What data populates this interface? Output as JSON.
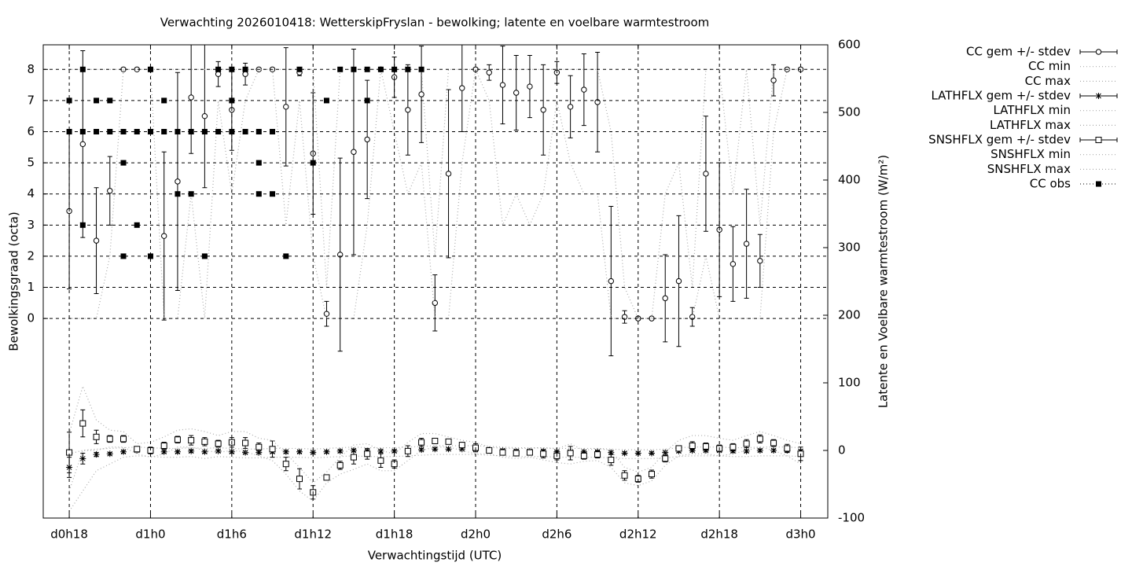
{
  "chart_data": {
    "type": "errorbar",
    "title": "Verwachting 2026010418: WetterskipFryslan - bewolking; latente en voelbare warmtestroom",
    "xlabel": "Verwachtingstijd (UTC)",
    "ylabel": "Bewolkingsgraad (octa)",
    "y2label": "Latente en Voelbare warmtestroom (W/m²)",
    "grid": true,
    "legend": "outside-right",
    "x": [
      0,
      1,
      2,
      3,
      4,
      5,
      6,
      7,
      8,
      9,
      10,
      11,
      12,
      13,
      14,
      15,
      16,
      17,
      18,
      19,
      20,
      21,
      22,
      23,
      24,
      25,
      26,
      27,
      28,
      29,
      30,
      31,
      32,
      33,
      34,
      35,
      36,
      37,
      38,
      39,
      40,
      41,
      42,
      43,
      44,
      45,
      46,
      47,
      48,
      49,
      50,
      51,
      52,
      53,
      54
    ],
    "xlim": [
      -1.92,
      56.0
    ],
    "xticks": [
      {
        "value": 0,
        "label": "d0h18"
      },
      {
        "value": 6,
        "label": "d1h0"
      },
      {
        "value": 12,
        "label": "d1h6"
      },
      {
        "value": 18,
        "label": "d1h12"
      },
      {
        "value": 24,
        "label": "d1h18"
      },
      {
        "value": 30,
        "label": "d2h0"
      },
      {
        "value": 36,
        "label": "d2h6"
      },
      {
        "value": 42,
        "label": "d2h12"
      },
      {
        "value": 48,
        "label": "d2h18"
      },
      {
        "value": 54,
        "label": "d3h0"
      }
    ],
    "ylim": [
      -6.41,
      8.79
    ],
    "yticks": [
      0,
      1,
      2,
      3,
      4,
      5,
      6,
      7,
      8
    ],
    "y2lim": [
      -100,
      600
    ],
    "y2ticks": [
      -100,
      0,
      100,
      200,
      300,
      400,
      500,
      600
    ],
    "series": [
      {
        "name": "CC gem +/- stdev",
        "color": "#000000",
        "style": "errorbar-circle",
        "values": [
          3.45,
          5.6,
          2.5,
          4.1,
          8,
          8,
          8,
          2.65,
          4.4,
          7.1,
          6.5,
          7.85,
          6.7,
          7.85,
          8,
          8,
          6.8,
          7.9,
          5.3,
          0.15,
          2.05,
          5.35,
          5.75,
          8,
          7.75,
          6.7,
          7.2,
          0.5,
          4.65,
          7.4,
          8,
          7.9,
          7.5,
          7.25,
          7.45,
          6.7,
          7.9,
          6.8,
          7.35,
          6.95,
          1.2,
          0.05,
          0,
          0,
          0.65,
          1.2,
          0.05,
          4.65,
          2.85,
          1.75,
          2.4,
          1.85,
          7.65,
          8,
          8
        ],
        "errors": [
          2.5,
          3.0,
          1.7,
          1.1,
          0,
          0,
          0.05,
          2.7,
          3.5,
          1.8,
          2.3,
          0.4,
          1.3,
          0.35,
          0,
          0,
          1.9,
          0.1,
          1.95,
          0.4,
          3.1,
          3.3,
          1.9,
          0,
          0.65,
          1.45,
          1.55,
          0.9,
          2.7,
          1.4,
          0,
          0.25,
          1.25,
          1.2,
          1.0,
          1.45,
          0.35,
          1.0,
          1.15,
          1.6,
          2.4,
          0.2,
          0.05,
          0,
          1.4,
          2.1,
          0.3,
          1.85,
          2.15,
          1.2,
          1.75,
          0.85,
          0.5,
          0,
          0
        ]
      },
      {
        "name": "CC min",
        "color": "#aaaaaa",
        "style": "dotted",
        "values": [
          0,
          0,
          0,
          2,
          8,
          8,
          8,
          0,
          0,
          4,
          0,
          7,
          4,
          7,
          8,
          8,
          3,
          7,
          2,
          0,
          0,
          0,
          3,
          8,
          6,
          4,
          5,
          0,
          0,
          5,
          8,
          7,
          3,
          4,
          3,
          4,
          7,
          5,
          4,
          4,
          0,
          0,
          0,
          0,
          0,
          0,
          0,
          2,
          0,
          0,
          0,
          0,
          6,
          8,
          8
        ]
      },
      {
        "name": "CC max",
        "color": "#aaaaaa",
        "style": "dotted",
        "values": [
          8,
          8,
          8,
          8,
          8,
          8,
          8,
          8,
          8,
          8,
          8,
          8,
          8,
          8,
          8,
          8,
          8,
          8,
          8,
          1,
          8,
          8,
          8,
          8,
          8,
          8,
          8,
          2,
          8,
          8,
          8,
          8,
          8,
          8,
          8,
          8,
          8,
          8,
          8,
          8,
          6,
          1,
          0,
          0,
          4,
          5,
          1,
          8,
          8,
          4,
          8,
          3,
          8,
          8,
          8
        ]
      },
      {
        "name": "LATHFLX gem +/- stdev",
        "color": "#000000",
        "style": "errorbar-star",
        "axis": "y2",
        "values": [
          -25,
          -12,
          -6,
          -5,
          -2,
          0,
          -1,
          -2,
          -2,
          -1,
          -2,
          -1,
          -2,
          -3,
          -3,
          -2,
          -2,
          -2,
          -3,
          -2,
          -1,
          0,
          -1,
          -1,
          -1,
          0,
          1,
          2,
          2,
          2,
          2,
          1,
          0,
          -1,
          -1,
          -1,
          -2,
          -2,
          -2,
          -2,
          -3,
          -4,
          -4,
          -4,
          -3,
          -1,
          0,
          0,
          0,
          -1,
          -1,
          0,
          0,
          0,
          -1
        ],
        "errors": [
          15,
          8,
          3,
          2,
          2,
          2,
          2,
          2,
          2,
          2,
          2,
          2,
          2,
          2,
          2,
          2,
          2,
          2,
          2,
          2,
          2,
          2,
          2,
          2,
          2,
          2,
          2,
          2,
          2,
          2,
          2,
          2,
          2,
          2,
          2,
          2,
          2,
          2,
          2,
          2,
          2,
          2,
          2,
          2,
          2,
          2,
          2,
          2,
          2,
          2,
          2,
          2,
          2,
          2,
          2
        ]
      },
      {
        "name": "LATHFLX min",
        "color": "#aaaaaa",
        "style": "dotted",
        "axis": "y2",
        "values": [
          -90,
          -60,
          -30,
          -20,
          -10,
          -8,
          -9,
          -10,
          -10,
          -9,
          -12,
          -9,
          -10,
          -11,
          -11,
          -10,
          -10,
          -10,
          -11,
          -10,
          -9,
          -8,
          -9,
          -9,
          -9,
          -8,
          -7,
          -6,
          -6,
          -6,
          -6,
          -7,
          -8,
          -9,
          -9,
          -9,
          -10,
          -10,
          -10,
          -10,
          -11,
          -12,
          -12,
          -12,
          -11,
          -9,
          -8,
          -8,
          -8,
          -9,
          -9,
          -8,
          -8,
          -8,
          -9
        ]
      },
      {
        "name": "LATHFLX max",
        "color": "#aaaaaa",
        "style": "dotted",
        "axis": "y2",
        "values": [
          -5,
          0,
          2,
          3,
          4,
          5,
          4,
          3,
          3,
          4,
          3,
          4,
          3,
          2,
          2,
          3,
          3,
          3,
          2,
          3,
          4,
          5,
          4,
          4,
          4,
          5,
          6,
          7,
          7,
          7,
          7,
          6,
          5,
          4,
          4,
          4,
          3,
          3,
          3,
          3,
          2,
          1,
          1,
          1,
          2,
          4,
          5,
          5,
          5,
          4,
          4,
          5,
          5,
          5,
          4
        ]
      },
      {
        "name": "SNSHFLX gem +/- stdev",
        "color": "#000000",
        "style": "errorbar-square",
        "axis": "y2",
        "values": [
          -3,
          40,
          20,
          17,
          17,
          2,
          0,
          7,
          16,
          15,
          13,
          10,
          12,
          11,
          5,
          2,
          -20,
          -42,
          -62,
          -40,
          -22,
          -10,
          -5,
          -15,
          -20,
          -1,
          12,
          14,
          13,
          8,
          4,
          0,
          -3,
          -4,
          -3,
          -5,
          -8,
          -4,
          -8,
          -6,
          -14,
          -37,
          -42,
          -35,
          -12,
          3,
          7,
          6,
          3,
          5,
          10,
          17,
          11,
          3,
          -5
        ],
        "errors": [
          30,
          20,
          10,
          5,
          5,
          3,
          5,
          5,
          5,
          7,
          6,
          5,
          7,
          8,
          6,
          12,
          10,
          15,
          10,
          3,
          6,
          10,
          8,
          10,
          6,
          8,
          6,
          4,
          3,
          4,
          6,
          2,
          3,
          4,
          3,
          6,
          6,
          10,
          5,
          5,
          8,
          7,
          5,
          6,
          5,
          4,
          6,
          5,
          5,
          5,
          6,
          6,
          5,
          6,
          10
        ]
      },
      {
        "name": "SNSHFLX min",
        "color": "#aaaaaa",
        "style": "dotted",
        "axis": "y2",
        "values": [
          -60,
          0,
          0,
          5,
          5,
          -5,
          -10,
          -5,
          5,
          5,
          0,
          -3,
          0,
          -2,
          -8,
          -15,
          -35,
          -60,
          -75,
          -48,
          -35,
          -28,
          -20,
          -30,
          -30,
          -15,
          0,
          5,
          5,
          0,
          -5,
          -5,
          -10,
          -12,
          -10,
          -14,
          -18,
          -20,
          -16,
          -15,
          -25,
          -48,
          -52,
          -45,
          -22,
          -8,
          -5,
          -5,
          -8,
          -5,
          0,
          5,
          0,
          -8,
          -20
        ]
      },
      {
        "name": "SNSHFLX max",
        "color": "#aaaaaa",
        "style": "dotted",
        "axis": "y2",
        "values": [
          25,
          95,
          45,
          30,
          28,
          10,
          12,
          20,
          30,
          32,
          28,
          22,
          28,
          28,
          18,
          15,
          -5,
          -25,
          -48,
          -32,
          -10,
          8,
          10,
          0,
          -5,
          12,
          25,
          25,
          20,
          15,
          12,
          5,
          3,
          3,
          3,
          4,
          2,
          10,
          0,
          3,
          0,
          -25,
          -32,
          -25,
          -2,
          15,
          22,
          22,
          18,
          15,
          22,
          28,
          22,
          15,
          10
        ]
      },
      {
        "name": "CC obs",
        "color": "#000000",
        "style": "points-square",
        "x": [
          0,
          0,
          1,
          1,
          1,
          2,
          2,
          3,
          3,
          4,
          4,
          4,
          5,
          5,
          6,
          6,
          6,
          7,
          7,
          8,
          8,
          9,
          9,
          10,
          10,
          11,
          11,
          12,
          12,
          12,
          13,
          13,
          14,
          14,
          14,
          15,
          15,
          16,
          17,
          18,
          19,
          20,
          21,
          22,
          22,
          23,
          24,
          25,
          26
        ],
        "values": [
          7,
          6,
          8,
          6,
          3,
          7,
          6,
          7,
          6,
          6,
          5,
          2,
          6,
          3,
          8,
          6,
          2,
          7,
          6,
          6,
          4,
          6,
          4,
          6,
          2,
          8,
          6,
          8,
          7,
          6,
          8,
          6,
          6,
          5,
          4,
          6,
          4,
          2,
          8,
          5,
          7,
          8,
          8,
          8,
          7,
          8,
          8,
          8,
          8
        ]
      }
    ]
  }
}
